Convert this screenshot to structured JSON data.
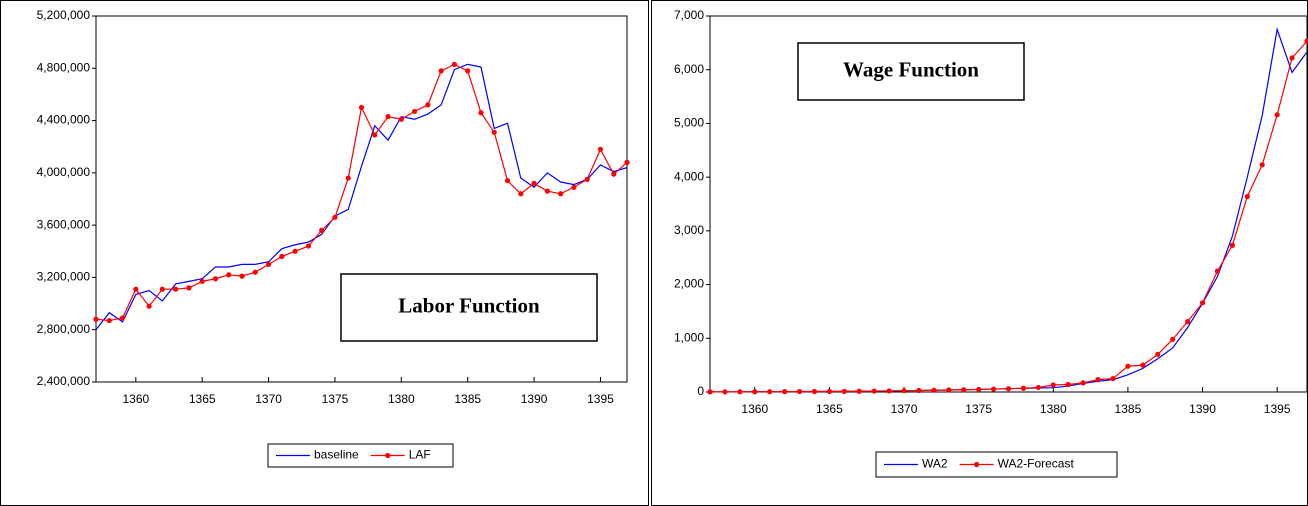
{
  "chart_data": [
    {
      "type": "line",
      "annotation": "Labor Function",
      "x": [
        1357,
        1358,
        1359,
        1360,
        1361,
        1362,
        1363,
        1364,
        1365,
        1366,
        1367,
        1368,
        1369,
        1370,
        1371,
        1372,
        1373,
        1374,
        1375,
        1376,
        1377,
        1378,
        1379,
        1380,
        1381,
        1382,
        1383,
        1384,
        1385,
        1386,
        1387,
        1388,
        1389,
        1390,
        1391,
        1392,
        1393,
        1394,
        1395,
        1396,
        1397
      ],
      "series": [
        {
          "name": "baseline",
          "color": "#0000ff",
          "markers": false,
          "values": [
            2800000,
            2930000,
            2860000,
            3070000,
            3100000,
            3020000,
            3150000,
            3170000,
            3190000,
            3280000,
            3280000,
            3300000,
            3300000,
            3320000,
            3420000,
            3450000,
            3470000,
            3530000,
            3670000,
            3720000,
            4050000,
            4360000,
            4250000,
            4430000,
            4410000,
            4450000,
            4520000,
            4790000,
            4830000,
            4810000,
            4340000,
            4380000,
            3960000,
            3890000,
            4000000,
            3930000,
            3910000,
            3950000,
            4060000,
            4010000,
            4040000
          ]
        },
        {
          "name": "LAF",
          "color": "#ff0000",
          "markers": true,
          "values": [
            2880000,
            2870000,
            2890000,
            3110000,
            2980000,
            3110000,
            3110000,
            3120000,
            3170000,
            3190000,
            3220000,
            3210000,
            3240000,
            3300000,
            3360000,
            3400000,
            3440000,
            3560000,
            3660000,
            3960000,
            4500000,
            4290000,
            4430000,
            4410000,
            4470000,
            4520000,
            4780000,
            4830000,
            4780000,
            4460000,
            4310000,
            3940000,
            3840000,
            3920000,
            3860000,
            3840000,
            3890000,
            3950000,
            4180000,
            3990000,
            4080000
          ]
        }
      ],
      "xlim": [
        1357,
        1397
      ],
      "xticks": [
        1360,
        1365,
        1370,
        1375,
        1380,
        1385,
        1390,
        1395
      ],
      "ylim": [
        2400000,
        5200000
      ],
      "yticks": [
        {
          "value": 2400000,
          "label": "2,400,000"
        },
        {
          "value": 2800000,
          "label": "2,800,000"
        },
        {
          "value": 3200000,
          "label": "3,200,000"
        },
        {
          "value": 3600000,
          "label": "3,600,000"
        },
        {
          "value": 4000000,
          "label": "4,000,000"
        },
        {
          "value": 4400000,
          "label": "4,400,000"
        },
        {
          "value": 4800000,
          "label": "4,800,000"
        },
        {
          "value": 5200000,
          "label": "5,200,000"
        }
      ]
    },
    {
      "type": "line",
      "annotation": "Wage Function",
      "x": [
        1357,
        1358,
        1359,
        1360,
        1361,
        1362,
        1363,
        1364,
        1365,
        1366,
        1367,
        1368,
        1369,
        1370,
        1371,
        1372,
        1373,
        1374,
        1375,
        1376,
        1377,
        1378,
        1379,
        1380,
        1381,
        1382,
        1383,
        1384,
        1385,
        1386,
        1387,
        1388,
        1389,
        1390,
        1391,
        1392,
        1393,
        1394,
        1395,
        1396,
        1397
      ],
      "series": [
        {
          "name": "WA2",
          "color": "#0000ff",
          "markers": false,
          "values": [
            2,
            3,
            4,
            5,
            6,
            7,
            8,
            9,
            10,
            12,
            14,
            17,
            20,
            24,
            28,
            32,
            37,
            42,
            48,
            55,
            62,
            70,
            75,
            80,
            110,
            160,
            200,
            230,
            320,
            440,
            620,
            820,
            1200,
            1650,
            2150,
            2900,
            4000,
            5150,
            6750,
            5950,
            6330
          ]
        },
        {
          "name": "WA2-Forecast",
          "color": "#ff0000",
          "markers": true,
          "values": [
            2,
            3,
            4,
            5,
            6,
            7,
            8,
            9,
            10,
            12,
            14,
            17,
            20,
            24,
            28,
            32,
            37,
            42,
            48,
            55,
            62,
            70,
            85,
            130,
            140,
            170,
            230,
            250,
            480,
            500,
            700,
            980,
            1310,
            1660,
            2250,
            2730,
            3640,
            4230,
            5160,
            6220,
            6530
          ]
        }
      ],
      "xlim": [
        1357,
        1397
      ],
      "xticks": [
        1360,
        1365,
        1370,
        1375,
        1380,
        1385,
        1390,
        1395
      ],
      "ylim": [
        0,
        7000
      ],
      "yticks": [
        0,
        {
          "value": 1000,
          "label": "1,000"
        },
        {
          "value": 2000,
          "label": "2,000"
        },
        {
          "value": 3000,
          "label": "3,000"
        },
        {
          "value": 4000,
          "label": "4,000"
        },
        {
          "value": 5000,
          "label": "5,000"
        },
        {
          "value": 6000,
          "label": "6,000"
        },
        {
          "value": 7000,
          "label": "7,000"
        }
      ]
    }
  ]
}
